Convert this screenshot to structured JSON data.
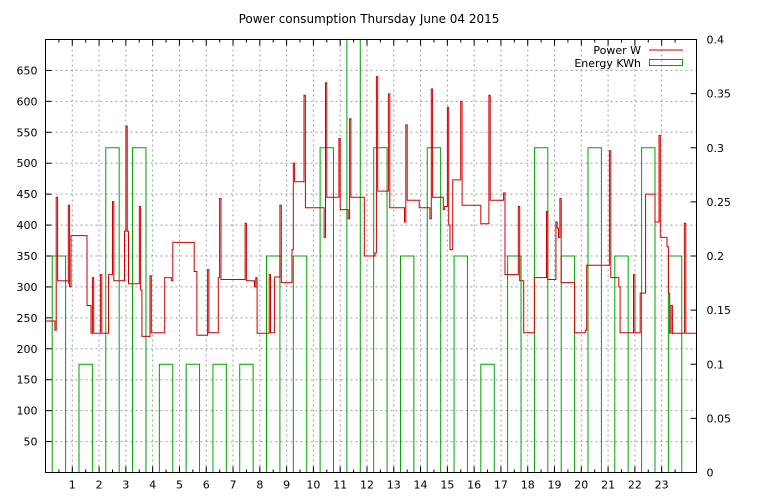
{
  "chart_data": {
    "type": "line",
    "title": "Power consumption Thursday June 04 2015",
    "xlabel": "",
    "ylabel": "",
    "xlim": [
      0,
      24.3
    ],
    "ylim": [
      0,
      700
    ],
    "y2lim": [
      0,
      0.4
    ],
    "x_ticks": [
      "1",
      "2",
      "3",
      "4",
      "5",
      "6",
      "7",
      "8",
      "9",
      "10",
      "11",
      "12",
      "13",
      "14",
      "15",
      "16",
      "17",
      "18",
      "19",
      "20",
      "21",
      "22",
      "23"
    ],
    "y_ticks": [
      "50",
      "100",
      "150",
      "200",
      "250",
      "300",
      "350",
      "400",
      "450",
      "500",
      "550",
      "600",
      "650"
    ],
    "y2_ticks": [
      "0",
      "0.05",
      "0.1",
      "0.15",
      "0.2",
      "0.25",
      "0.3",
      "0.35",
      "0.4"
    ],
    "grid": true,
    "legend_position": "top-right",
    "colors": {
      "power": "#cc0000",
      "energy": "#00a000"
    },
    "series": [
      {
        "name": "Power W",
        "axis": "left",
        "style": "steps",
        "points": [
          [
            0.0,
            245
          ],
          [
            0.35,
            245
          ],
          [
            0.35,
            230
          ],
          [
            0.4,
            445
          ],
          [
            0.45,
            310
          ],
          [
            0.8,
            310
          ],
          [
            0.85,
            305
          ],
          [
            0.85,
            432
          ],
          [
            0.9,
            300
          ],
          [
            0.95,
            383
          ],
          [
            1.5,
            383
          ],
          [
            1.55,
            270
          ],
          [
            1.7,
            225
          ],
          [
            1.75,
            315
          ],
          [
            1.8,
            225
          ],
          [
            2.0,
            225
          ],
          [
            2.05,
            320
          ],
          [
            2.1,
            225
          ],
          [
            2.3,
            225
          ],
          [
            2.35,
            320
          ],
          [
            2.45,
            320
          ],
          [
            2.5,
            438
          ],
          [
            2.55,
            310
          ],
          [
            2.9,
            310
          ],
          [
            2.95,
            390
          ],
          [
            3.0,
            560
          ],
          [
            3.05,
            390
          ],
          [
            3.1,
            305
          ],
          [
            3.45,
            305
          ],
          [
            3.5,
            430
          ],
          [
            3.55,
            295
          ],
          [
            3.6,
            220
          ],
          [
            3.85,
            220
          ],
          [
            3.9,
            318
          ],
          [
            3.95,
            226
          ],
          [
            4.4,
            226
          ],
          [
            4.45,
            315
          ],
          [
            4.6,
            315
          ],
          [
            4.7,
            310
          ],
          [
            4.75,
            372
          ],
          [
            5.5,
            372
          ],
          [
            5.55,
            325
          ],
          [
            5.65,
            222
          ],
          [
            6.0,
            222
          ],
          [
            6.05,
            328
          ],
          [
            6.1,
            226
          ],
          [
            6.4,
            226
          ],
          [
            6.45,
            315
          ],
          [
            6.5,
            443
          ],
          [
            6.55,
            312
          ],
          [
            7.4,
            312
          ],
          [
            7.45,
            403
          ],
          [
            7.5,
            310
          ],
          [
            7.75,
            310
          ],
          [
            7.8,
            300
          ],
          [
            7.85,
            315
          ],
          [
            7.9,
            225
          ],
          [
            8.3,
            225
          ],
          [
            8.35,
            320
          ],
          [
            8.4,
            226
          ],
          [
            8.5,
            226
          ],
          [
            8.55,
            316
          ],
          [
            8.7,
            316
          ],
          [
            8.75,
            432
          ],
          [
            8.8,
            307
          ],
          [
            9.15,
            307
          ],
          [
            9.2,
            360
          ],
          [
            9.25,
            500
          ],
          [
            9.3,
            470
          ],
          [
            9.6,
            470
          ],
          [
            9.65,
            610
          ],
          [
            9.7,
            428
          ],
          [
            10.35,
            428
          ],
          [
            10.4,
            380
          ],
          [
            10.45,
            630
          ],
          [
            10.5,
            445
          ],
          [
            10.9,
            445
          ],
          [
            10.95,
            540
          ],
          [
            11.0,
            425
          ],
          [
            11.25,
            425
          ],
          [
            11.3,
            410
          ],
          [
            11.35,
            572
          ],
          [
            11.4,
            445
          ],
          [
            11.85,
            445
          ],
          [
            11.9,
            350
          ],
          [
            12.25,
            350
          ],
          [
            12.3,
            355
          ],
          [
            12.35,
            640
          ],
          [
            12.4,
            455
          ],
          [
            12.75,
            455
          ],
          [
            12.8,
            612
          ],
          [
            12.85,
            428
          ],
          [
            13.35,
            428
          ],
          [
            13.4,
            405
          ],
          [
            13.45,
            562
          ],
          [
            13.5,
            440
          ],
          [
            13.9,
            440
          ],
          [
            13.95,
            428
          ],
          [
            14.3,
            428
          ],
          [
            14.35,
            410
          ],
          [
            14.4,
            620
          ],
          [
            14.45,
            445
          ],
          [
            14.8,
            445
          ],
          [
            14.85,
            425
          ],
          [
            14.9,
            430
          ],
          [
            15.0,
            590
          ],
          [
            15.05,
            400
          ],
          [
            15.1,
            360
          ],
          [
            15.2,
            473
          ],
          [
            15.45,
            473
          ],
          [
            15.5,
            600
          ],
          [
            15.55,
            432
          ],
          [
            16.2,
            432
          ],
          [
            16.25,
            402
          ],
          [
            16.5,
            402
          ],
          [
            16.55,
            610
          ],
          [
            16.6,
            440
          ],
          [
            17.05,
            440
          ],
          [
            17.1,
            452
          ],
          [
            17.15,
            320
          ],
          [
            17.6,
            320
          ],
          [
            17.65,
            430
          ],
          [
            17.7,
            310
          ],
          [
            17.8,
            310
          ],
          [
            17.85,
            226
          ],
          [
            18.2,
            226
          ],
          [
            18.25,
            315
          ],
          [
            18.65,
            315
          ],
          [
            18.7,
            422
          ],
          [
            18.75,
            312
          ],
          [
            19.0,
            312
          ],
          [
            19.05,
            405
          ],
          [
            19.1,
            395
          ],
          [
            19.15,
            380
          ],
          [
            19.2,
            443
          ],
          [
            19.25,
            307
          ],
          [
            19.7,
            307
          ],
          [
            19.75,
            226
          ],
          [
            20.1,
            226
          ],
          [
            20.15,
            230
          ],
          [
            20.2,
            335
          ],
          [
            21.0,
            335
          ],
          [
            21.05,
            520
          ],
          [
            21.1,
            315
          ],
          [
            21.35,
            315
          ],
          [
            21.4,
            300
          ],
          [
            21.45,
            226
          ],
          [
            21.9,
            226
          ],
          [
            21.95,
            320
          ],
          [
            22.0,
            226
          ],
          [
            22.15,
            226
          ],
          [
            22.2,
            290
          ],
          [
            22.35,
            290
          ],
          [
            22.4,
            450
          ],
          [
            22.7,
            450
          ],
          [
            22.75,
            405
          ],
          [
            22.85,
            405
          ],
          [
            22.9,
            545
          ],
          [
            22.95,
            380
          ],
          [
            23.15,
            380
          ],
          [
            23.2,
            365
          ],
          [
            23.25,
            290
          ],
          [
            23.3,
            225
          ],
          [
            23.35,
            270
          ],
          [
            23.4,
            225
          ],
          [
            23.8,
            225
          ],
          [
            23.85,
            403
          ],
          [
            23.9,
            225
          ],
          [
            24.3,
            225
          ]
        ]
      },
      {
        "name": "Energy KWh",
        "axis": "right",
        "style": "boxes",
        "hours": [
          0,
          1,
          2,
          3,
          4,
          5,
          6,
          7,
          8,
          9,
          10,
          11,
          12,
          13,
          14,
          15,
          16,
          17,
          18,
          19,
          20,
          21,
          22,
          23
        ],
        "values": [
          0.2,
          0.1,
          0.3,
          0.3,
          0.1,
          0.1,
          0.1,
          0.1,
          0.2,
          0.2,
          0.3,
          0.4,
          0.3,
          0.2,
          0.3,
          0.2,
          0.1,
          0.2,
          0.3,
          0.2,
          0.3,
          0.2,
          0.3,
          0.2
        ]
      }
    ]
  }
}
